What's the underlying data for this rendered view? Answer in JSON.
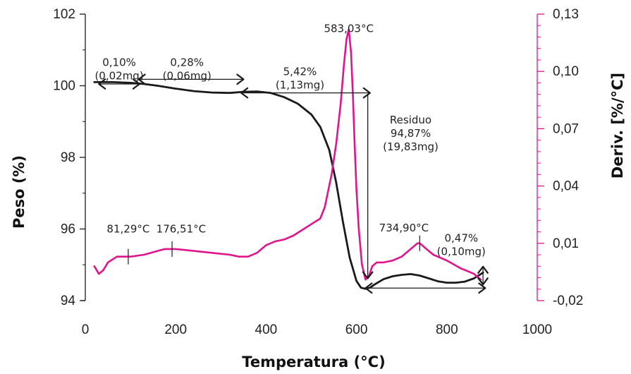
{
  "chart_data": {
    "type": "line",
    "title": "",
    "xlabel": "Temperatura (°C)",
    "ylabel_left": "Peso (%)",
    "ylabel_right": "Deriv. [%/°C]",
    "xlim": [
      0,
      1000
    ],
    "ylim_left": [
      94,
      102
    ],
    "ylim_right": [
      -0.02,
      0.13
    ],
    "x_ticks": [
      "0",
      "200",
      "400",
      "600",
      "800",
      "1000"
    ],
    "y_left_ticks": [
      "94",
      "96",
      "98",
      "100",
      "102"
    ],
    "y_right_ticks": [
      "-0,02",
      "0,01",
      "0,04",
      "0,07",
      "0,10",
      "0,13"
    ],
    "grid": false,
    "colors": {
      "weight": "#1a1a1a",
      "derivative": "#e0158c",
      "annotation": "#1a1a1a"
    },
    "series": [
      {
        "axis": "left",
        "x": [
          20,
          60,
          100,
          130,
          160,
          200,
          240,
          280,
          320,
          350,
          380,
          410,
          440,
          470,
          500,
          520,
          540,
          555,
          570,
          585,
          600,
          610,
          620,
          630,
          640,
          660,
          680,
          700,
          720,
          740,
          760,
          780,
          800,
          820,
          840,
          860,
          880
        ],
        "values": [
          100.1,
          100.1,
          100.08,
          100.05,
          100.0,
          99.92,
          99.85,
          99.81,
          99.8,
          99.83,
          99.84,
          99.8,
          99.68,
          99.5,
          99.2,
          98.85,
          98.2,
          97.3,
          96.2,
          95.2,
          94.55,
          94.36,
          94.33,
          94.36,
          94.45,
          94.6,
          94.68,
          94.72,
          94.74,
          94.7,
          94.62,
          94.54,
          94.5,
          94.5,
          94.53,
          94.62,
          94.78
        ]
      },
      {
        "axis": "right",
        "x": [
          20,
          30,
          40,
          50,
          70,
          81,
          100,
          130,
          160,
          176,
          200,
          240,
          280,
          320,
          340,
          350,
          360,
          380,
          400,
          420,
          440,
          460,
          480,
          500,
          520,
          530,
          545,
          555,
          565,
          572,
          578,
          583,
          588,
          592,
          596,
          600,
          605,
          612,
          620,
          628,
          635,
          645,
          660,
          680,
          700,
          720,
          735,
          740,
          750,
          770,
          800,
          830,
          860,
          875
        ],
        "values": [
          -0.002,
          -0.006,
          -0.004,
          0.0,
          0.003,
          0.003,
          0.003,
          0.004,
          0.006,
          0.007,
          0.007,
          0.006,
          0.005,
          0.004,
          0.003,
          0.003,
          0.003,
          0.005,
          0.009,
          0.011,
          0.012,
          0.014,
          0.017,
          0.02,
          0.023,
          0.029,
          0.046,
          0.062,
          0.083,
          0.103,
          0.117,
          0.122,
          0.11,
          0.088,
          0.062,
          0.038,
          0.018,
          -0.001,
          -0.009,
          -0.007,
          -0.002,
          0.0,
          0.0,
          0.001,
          0.003,
          0.007,
          0.01,
          0.01,
          0.008,
          0.004,
          0.001,
          -0.003,
          -0.006,
          -0.009
        ]
      }
    ],
    "annotations": [
      {
        "lines": [
          "0,10%",
          "(0,02mg)"
        ],
        "x": 75,
        "y": 100.55
      },
      {
        "lines": [
          "0,28%",
          "(0,06mg)"
        ],
        "x": 225,
        "y": 100.55
      },
      {
        "lines": [
          "5,42%",
          "(1,13mg)"
        ],
        "x": 475,
        "y": 100.3
      },
      {
        "lines": [
          "Residuo",
          "94,87%",
          "(19,83mg)"
        ],
        "x": 720,
        "y": 98.95
      },
      {
        "lines": [
          "0,47%",
          "(0,10mg)"
        ],
        "x": 832,
        "y": 95.65
      },
      {
        "lines": [
          "583,03°C"
        ],
        "x": 583,
        "y": 101.5
      },
      {
        "lines": [
          "81,29°C"
        ],
        "x": 95,
        "y": 95.9
      },
      {
        "lines": [
          "176,51°C"
        ],
        "x": 212,
        "y": 95.9
      },
      {
        "lines": [
          "734,90°C"
        ],
        "x": 705,
        "y": 95.93
      }
    ],
    "peak_markers": [
      {
        "x": 95,
        "axis": "right",
        "value": 0.003
      },
      {
        "x": 192,
        "axis": "right",
        "value": 0.007
      },
      {
        "x": 740,
        "axis": "right",
        "value": 0.01
      }
    ],
    "arrows": [
      {
        "x1": 30,
        "y1": 100.05,
        "x2": 120,
        "y2": 100.05,
        "type": "double"
      },
      {
        "x1": 118,
        "y1": 100.18,
        "x2": 350,
        "y2": 100.18,
        "type": "double"
      },
      {
        "x1": 345,
        "y1": 99.8,
        "x2": 630,
        "y2": 99.8,
        "type": "double"
      },
      {
        "x1": 625,
        "y1": 99.75,
        "x2": 625,
        "y2": 94.62,
        "type": "down"
      },
      {
        "x1": 620,
        "y1": 94.35,
        "x2": 885,
        "y2": 94.35,
        "type": "double"
      },
      {
        "x1": 880,
        "y1": 94.95,
        "x2": 880,
        "y2": 94.45,
        "type": "double"
      }
    ]
  }
}
